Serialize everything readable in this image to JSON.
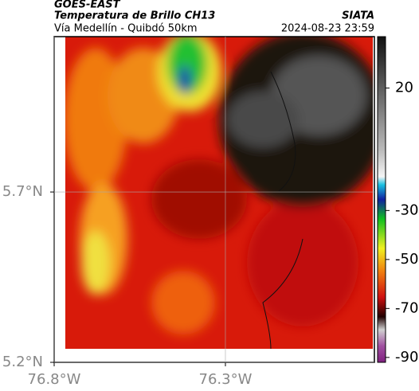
{
  "header": {
    "title": "GOES-EAST",
    "subtitle": "Temperatura de Brillo CH13",
    "region": "Vía Medellín - Quibdó 50km",
    "source": "SIATA",
    "timestamp": "2024-08-23 23:59"
  },
  "map": {
    "lonlim": [
      -76.8,
      -75.865
    ],
    "latlim": [
      5.2,
      6.156
    ],
    "lonticks": [
      {
        "value": -76.8,
        "label": "76.8°W"
      },
      {
        "value": -76.3,
        "label": "76.3°W"
      }
    ],
    "latticks": [
      {
        "value": 5.2,
        "label": "5.2°N"
      },
      {
        "value": 5.7,
        "label": "5.7°N"
      }
    ],
    "grid": true
  },
  "colorbar": {
    "lim": [
      41,
      -92
    ],
    "ticks": [
      20,
      -30,
      -50,
      -70,
      -90
    ]
  }
}
